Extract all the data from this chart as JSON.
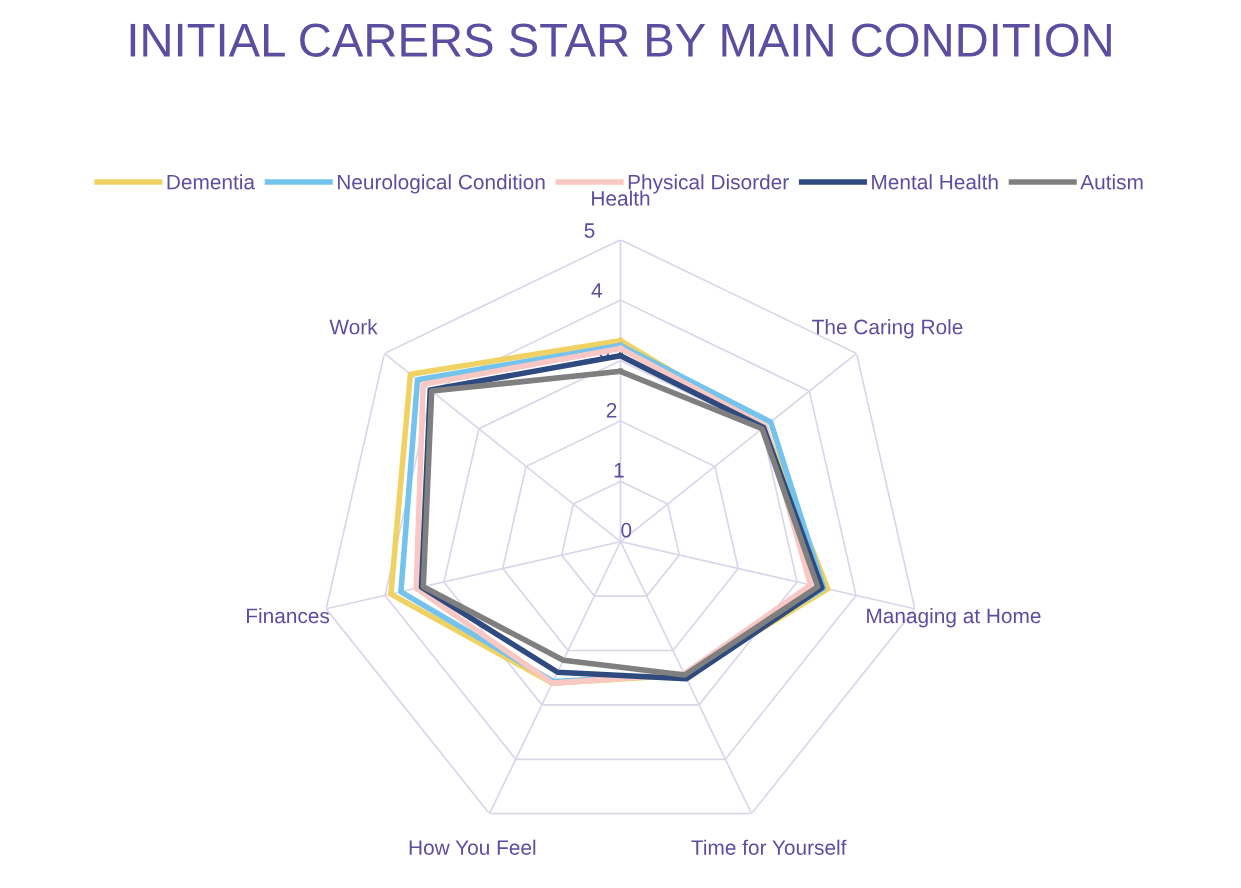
{
  "chart_data": {
    "type": "radar",
    "title": "INITIAL CARERS STAR BY MAIN CONDITION",
    "categories": [
      "Health",
      "The Caring Role",
      "Managing at Home",
      "Time for Yourself",
      "How You Feel",
      "Finances",
      "Work"
    ],
    "series": [
      {
        "name": "Dementia",
        "color": "#f0d264",
        "values": [
          3.33,
          3.05,
          3.52,
          2.45,
          2.6,
          3.9,
          4.45
        ]
      },
      {
        "name": "Neurological Condition",
        "color": "#74c3ec",
        "values": [
          3.25,
          3.18,
          3.45,
          2.44,
          2.57,
          3.73,
          4.3
        ]
      },
      {
        "name": "Physical Disorder",
        "color": "#f9c8c4",
        "values": [
          3.2,
          3.07,
          3.23,
          2.43,
          2.6,
          3.47,
          4.18
        ]
      },
      {
        "name": "Mental Health",
        "color": "#2e4a7e",
        "values": [
          3.08,
          3.03,
          3.42,
          2.52,
          2.4,
          3.38,
          4.03
        ]
      },
      {
        "name": "Autism",
        "color": "#7f7f7f",
        "values": [
          2.82,
          3.0,
          3.35,
          2.45,
          2.18,
          3.35,
          4.0
        ]
      }
    ],
    "ylim": [
      0,
      5
    ],
    "yticks": [
      0,
      1,
      2,
      3,
      4,
      5
    ],
    "grid": true,
    "legend": "top",
    "marker": "none",
    "line_style": "solid"
  }
}
